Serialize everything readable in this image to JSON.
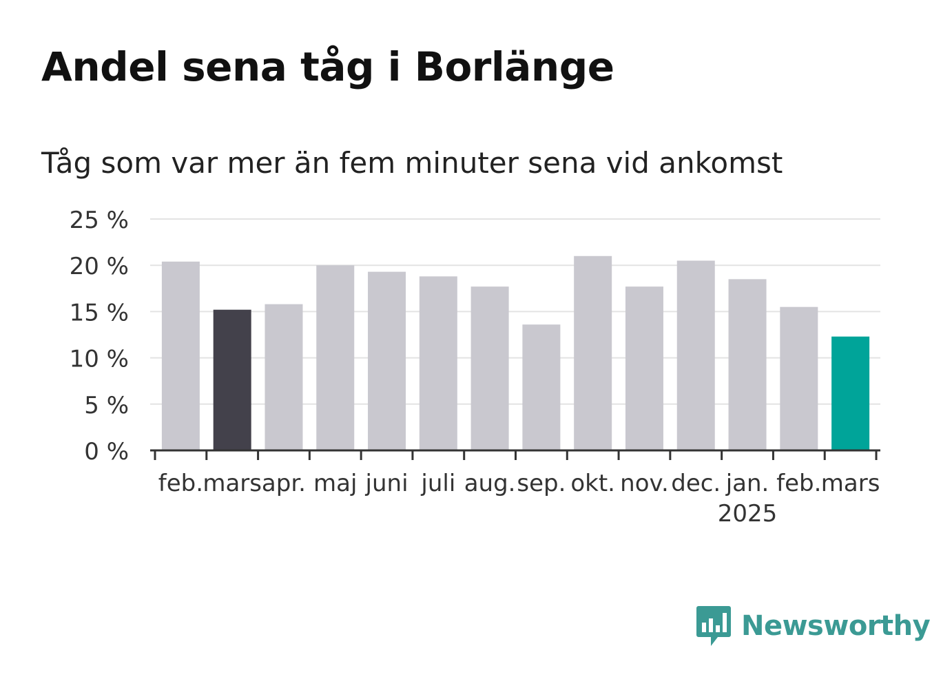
{
  "title": "Andel sena tåg i Borlänge",
  "subtitle": "Tåg som var mer än fem minuter sena vid ankomst",
  "brand": {
    "name": "Newsworthy",
    "icon": "bar-chart-speech-bubble-icon",
    "color": "#3b9a94"
  },
  "chart_data": {
    "type": "bar",
    "categories": [
      "feb.",
      "mars",
      "apr.",
      "maj",
      "juni",
      "juli",
      "aug.",
      "sep.",
      "okt.",
      "nov.",
      "dec.",
      "jan.",
      "feb.",
      "mars"
    ],
    "year_labels": [
      "",
      "",
      "",
      "",
      "",
      "",
      "",
      "",
      "",
      "",
      "",
      "2025",
      "",
      ""
    ],
    "values": [
      20.4,
      15.2,
      15.8,
      20.0,
      19.3,
      18.8,
      17.7,
      13.6,
      21.0,
      17.7,
      20.5,
      18.5,
      15.5,
      12.3
    ],
    "bar_colors": [
      "#c9c8cf",
      "#43414b",
      "#c9c8cf",
      "#c9c8cf",
      "#c9c8cf",
      "#c9c8cf",
      "#c9c8cf",
      "#c9c8cf",
      "#c9c8cf",
      "#c9c8cf",
      "#c9c8cf",
      "#c9c8cf",
      "#c9c8cf",
      "#00a499"
    ],
    "yticks": [
      "0 %",
      "5 %",
      "10 %",
      "15 %",
      "20 %",
      "25 %"
    ],
    "ytick_values": [
      0,
      5,
      10,
      15,
      20,
      25
    ],
    "ylim": [
      0,
      25
    ],
    "xlabel": "",
    "ylabel": "",
    "grid": true,
    "colors": {
      "default": "#c9c8cf",
      "highlight_previous": "#43414b",
      "highlight_current": "#00a499",
      "grid": "#e3e3e3",
      "axis": "#333333"
    }
  }
}
